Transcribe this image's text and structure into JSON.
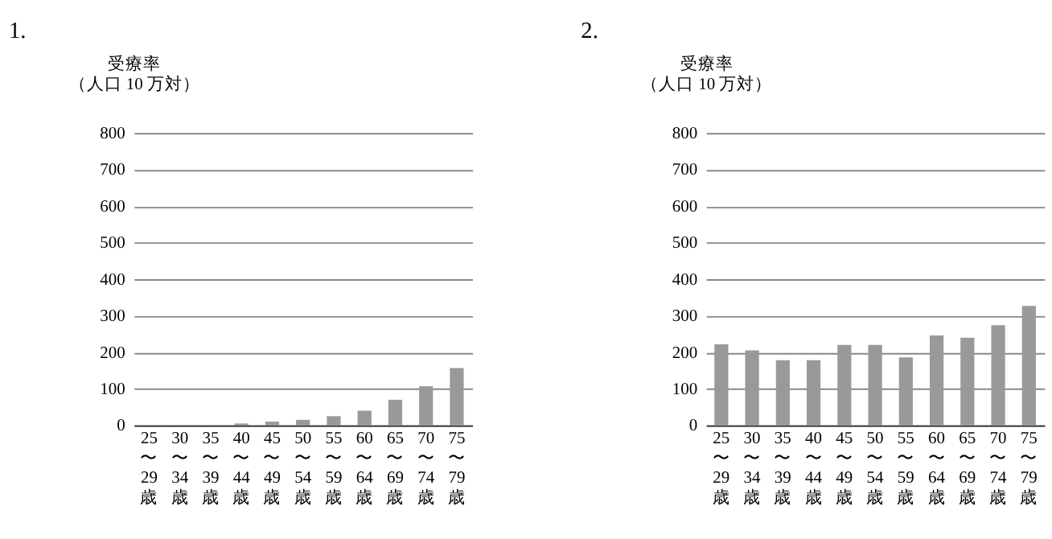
{
  "chart_data": [
    {
      "type": "bar",
      "title": "1.",
      "ylabel": "受療率",
      "annotations": [
        "（人口 10 万対）"
      ],
      "categories": [
        "25\n〜\n29\n歳",
        "30\n〜\n34\n歳",
        "35\n〜\n39\n歳",
        "40\n〜\n44\n歳",
        "45\n〜\n49\n歳",
        "50\n〜\n54\n歳",
        "55\n〜\n59\n歳",
        "60\n〜\n64\n歳",
        "65\n〜\n69\n歳",
        "70\n〜\n74\n歳",
        "75\n〜\n79\n歳"
      ],
      "values": [
        0,
        0,
        0,
        5,
        10,
        15,
        25,
        40,
        70,
        107,
        157
      ],
      "color": "#999999",
      "ylim": [
        0,
        800
      ],
      "yticks": [
        0,
        100,
        200,
        300,
        400,
        500,
        600,
        700,
        800
      ],
      "grid": "y"
    },
    {
      "type": "bar",
      "title": "2.",
      "ylabel": "受療率",
      "annotations": [
        "（人口 10 万対）"
      ],
      "categories": [
        "25\n〜\n29\n歳",
        "30\n〜\n34\n歳",
        "35\n〜\n39\n歳",
        "40\n〜\n44\n歳",
        "45\n〜\n49\n歳",
        "50\n〜\n54\n歳",
        "55\n〜\n59\n歳",
        "60\n〜\n64\n歳",
        "65\n〜\n69\n歳",
        "70\n〜\n74\n歳",
        "75\n〜\n79\n歳"
      ],
      "values": [
        222,
        205,
        178,
        178,
        220,
        220,
        186,
        246,
        240,
        274,
        327
      ],
      "color": "#999999",
      "ylim": [
        0,
        800
      ],
      "yticks": [
        0,
        100,
        200,
        300,
        400,
        500,
        600,
        700,
        800
      ],
      "grid": "y"
    }
  ]
}
